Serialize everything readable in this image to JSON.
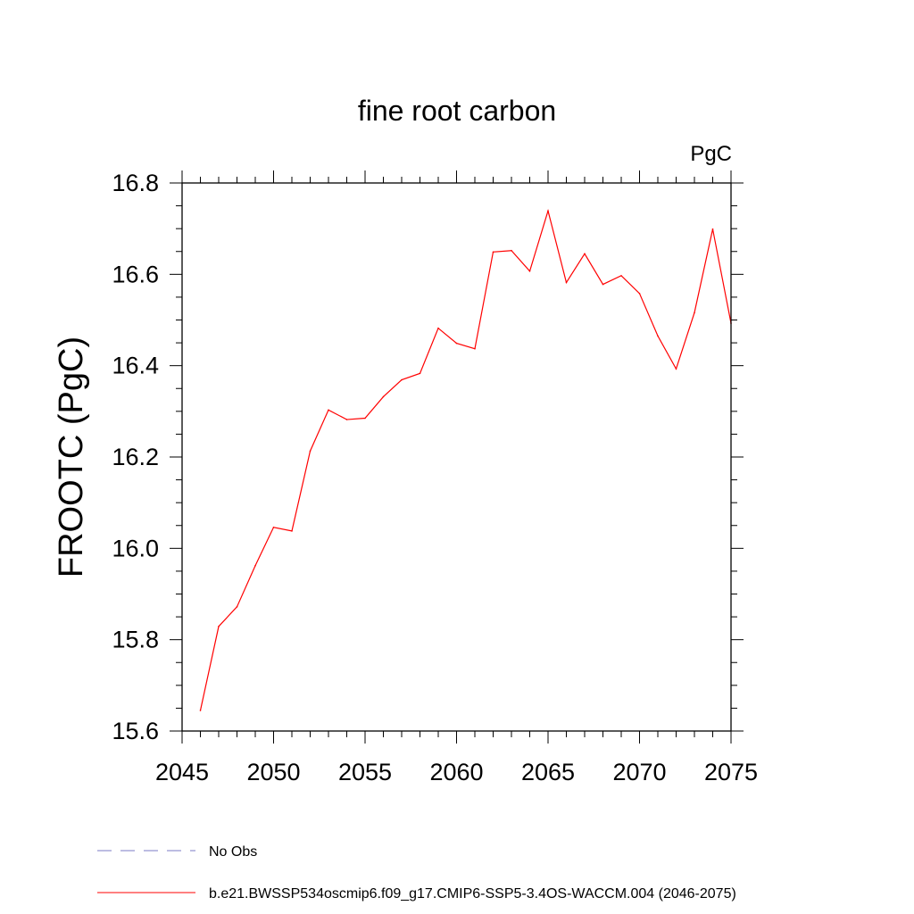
{
  "chart_data": {
    "type": "line",
    "title": "fine root carbon",
    "units_label": "PgC",
    "ylabel": "FROOTC  (PgC)",
    "xlabel": "",
    "xlim": [
      2045,
      2075
    ],
    "ylim": [
      15.6,
      16.8
    ],
    "xticks": [
      2045,
      2050,
      2055,
      2060,
      2065,
      2070,
      2075
    ],
    "yticks": [
      15.6,
      15.8,
      16.0,
      16.2,
      16.4,
      16.6,
      16.8
    ],
    "ytick_labels": [
      "15.6",
      "15.8",
      "16.0",
      "16.2",
      "16.4",
      "16.6",
      "16.8"
    ],
    "grid": false,
    "series": [
      {
        "name": "b.e21.BWSSP534oscmip6.f09_g17.CMIP6-SSP5-3.4OS-WACCM.004 (2046-2075)",
        "color": "#ff0000",
        "style": "solid",
        "x": [
          2046,
          2047,
          2048,
          2049,
          2050,
          2051,
          2052,
          2053,
          2054,
          2055,
          2056,
          2057,
          2058,
          2059,
          2060,
          2061,
          2062,
          2063,
          2064,
          2065,
          2066,
          2067,
          2068,
          2069,
          2070,
          2071,
          2072,
          2073,
          2074,
          2075
        ],
        "values": [
          15.645,
          15.829,
          15.872,
          15.962,
          16.046,
          16.038,
          16.213,
          16.303,
          16.282,
          16.285,
          16.332,
          16.369,
          16.383,
          16.482,
          16.449,
          16.437,
          16.649,
          16.652,
          16.607,
          16.739,
          16.582,
          16.645,
          16.578,
          16.597,
          16.558,
          16.465,
          16.393,
          16.516,
          16.699,
          16.493
        ]
      }
    ],
    "legend": [
      {
        "label": "No Obs",
        "color": "#7b7bc4",
        "style": "dashed"
      },
      {
        "label": "b.e21.BWSSP534oscmip6.f09_g17.CMIP6-SSP5-3.4OS-WACCM.004 (2046-2075)",
        "color": "#ff0000",
        "style": "solid"
      }
    ],
    "legend_position": "bottom"
  }
}
